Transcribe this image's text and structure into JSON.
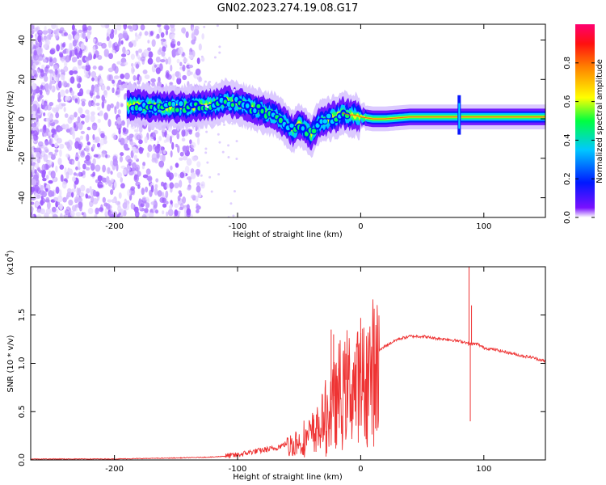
{
  "title": "GN02.2023.274.19.08.G17",
  "chart_data": [
    {
      "type": "heatmap",
      "title": "GN02.2023.274.19.08.G17",
      "xlabel": "Height of straight line (km)",
      "ylabel": "Frequency (Hz)",
      "xlim": [
        -268,
        150
      ],
      "ylim": [
        -50,
        48
      ],
      "xticks": [
        "-200",
        "-100",
        "0",
        "100"
      ],
      "yticks": [
        "40",
        "20",
        "0",
        "-20",
        "-40"
      ],
      "colorbar": {
        "label": "Normalized spectral amplitude",
        "ticks": [
          "0.0",
          "0.2",
          "0.4",
          "0.6",
          "0.8"
        ],
        "range": [
          0,
          1
        ],
        "colors": [
          "#ffffff",
          "#6a00ff",
          "#0010ff",
          "#00c8ff",
          "#00ff20",
          "#ffff00",
          "#ff8000",
          "#ff0000",
          "#ff0070"
        ]
      },
      "ridge": {
        "x": [
          -185,
          -160,
          -140,
          -120,
          -110,
          -100,
          -90,
          -80,
          -70,
          -60,
          -55,
          -50,
          -45,
          -40,
          -35,
          -30,
          -25,
          -20,
          -15,
          -10,
          -5,
          0,
          10,
          20,
          40,
          60,
          80,
          100,
          120,
          150
        ],
        "y": [
          7,
          6,
          6,
          7,
          9,
          8,
          6,
          4,
          2,
          -3,
          -6,
          -3,
          -5,
          -8,
          -3,
          -1,
          0,
          1,
          3,
          2,
          2,
          1,
          0,
          0,
          1,
          1,
          1,
          1,
          1,
          1
        ]
      }
    },
    {
      "type": "line",
      "xlabel": "Height of straight line (km)",
      "ylabel": "SNR (10 * v/v)",
      "y_scale_note": "(x10",
      "y_scale_exp": "4",
      "xlim": [
        -268,
        150
      ],
      "ylim": [
        0,
        2.0
      ],
      "xticks": [
        "-200",
        "-100",
        "0",
        "100"
      ],
      "yticks": [
        "0.0",
        "0.5",
        "1.0",
        "1.5"
      ],
      "series": [
        {
          "color": "#ee3333",
          "x": [
            -268,
            -250,
            -200,
            -150,
            -120,
            -100,
            -90,
            -80,
            -70,
            -60,
            -50,
            -40,
            -35,
            -30,
            -25,
            -20,
            -15,
            -10,
            -5,
            0,
            5,
            10,
            20,
            30,
            40,
            50,
            60,
            70,
            80,
            85,
            88,
            90,
            95,
            100,
            110,
            120,
            130,
            140,
            150
          ],
          "y": [
            0.01,
            0.01,
            0.01,
            0.02,
            0.03,
            0.05,
            0.08,
            0.1,
            0.12,
            0.17,
            0.22,
            0.3,
            0.38,
            0.45,
            0.6,
            0.7,
            0.8,
            0.85,
            0.9,
            0.9,
            1.0,
            1.08,
            1.18,
            1.25,
            1.28,
            1.28,
            1.26,
            1.25,
            1.23,
            1.22,
            1.2,
            1.2,
            1.2,
            1.16,
            1.14,
            1.11,
            1.08,
            1.06,
            1.02
          ]
        }
      ],
      "spikes": [
        {
          "x": -38,
          "y": 0.42
        },
        {
          "x": -24,
          "y": 1.35
        },
        {
          "x": -22,
          "y": 1.3
        },
        {
          "x": -18,
          "y": 0.95
        },
        {
          "x": -12,
          "y": 1.1
        },
        {
          "x": 0,
          "y": 1.47
        },
        {
          "x": 5,
          "y": 0.4
        },
        {
          "x": 88,
          "y": 2.0
        },
        {
          "x": 89,
          "y": 0.4
        },
        {
          "x": 90,
          "y": 1.6
        }
      ]
    }
  ]
}
